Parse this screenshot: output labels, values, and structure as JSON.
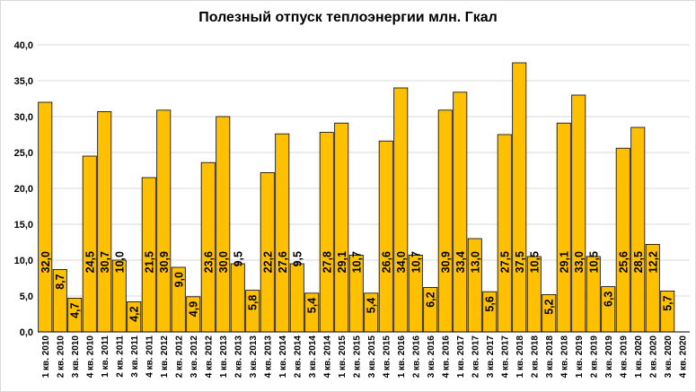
{
  "chart_data": {
    "type": "bar",
    "title": "Полезный отпуск теплоэнергии млн. Гкал",
    "xlabel": "",
    "ylabel": "",
    "ylim": [
      0,
      40
    ],
    "yticks": [
      "0,0",
      "5,0",
      "10,0",
      "15,0",
      "20,0",
      "25,0",
      "30,0",
      "35,0",
      "40,0"
    ],
    "grid": true,
    "legend": "none",
    "bar_color": "#FFC000",
    "bar_edge": "#000000",
    "categories": [
      "1 кв. 2010",
      "2 кв. 2010",
      "3 кв. 2010",
      "4 кв. 2010",
      "1 кв. 2011",
      "2 кв. 2011",
      "3 кв. 2011",
      "4 кв. 2011",
      "1 кв. 2012",
      "2 кв. 2012",
      "3 кв. 2012",
      "4 кв. 2012",
      "1 кв. 2013",
      "2 кв. 2013",
      "3 кв. 2013",
      "4 кв. 2013",
      "1 кв. 2014",
      "2 кв. 2014",
      "3 кв. 2014",
      "4 кв. 2014",
      "1 кв. 2015",
      "2 кв. 2015",
      "3 кв. 2015",
      "4 кв. 2015",
      "1 кв. 2016",
      "2 кв. 2016",
      "3 кв. 2016",
      "4 кв. 2016",
      "1 кв. 2017",
      "2 кв. 2017",
      "3 кв. 2017",
      "4 кв. 2017",
      "1 кв. 2018",
      "2 кв. 2018",
      "3 кв. 2018",
      "4 кв. 2018",
      "1 кв. 2019",
      "2 кв. 2019",
      "3 кв. 2019",
      "4 кв. 2019",
      "1 кв. 2020",
      "2 кв. 2020",
      "3 кв. 2020",
      "4 кв. 2020"
    ],
    "values": [
      32.0,
      8.7,
      4.7,
      24.5,
      30.7,
      10.0,
      4.2,
      21.5,
      30.9,
      9.0,
      4.9,
      23.6,
      30.0,
      9.5,
      5.8,
      22.2,
      27.6,
      9.5,
      5.4,
      27.8,
      29.1,
      10.7,
      5.4,
      26.6,
      34.0,
      10.7,
      6.2,
      30.9,
      33.4,
      13.0,
      5.6,
      27.5,
      37.5,
      10.5,
      5.2,
      29.1,
      33.0,
      10.5,
      6.3,
      25.6,
      28.5,
      12.2,
      5.7,
      null
    ],
    "labels": [
      "32,0",
      "8,7",
      "4,7",
      "24,5",
      "30,7",
      "10,0",
      "4,2",
      "21,5",
      "30,9",
      "9,0",
      "4,9",
      "23,6",
      "30,0",
      "9,5",
      "5,8",
      "22,2",
      "27,6",
      "9,5",
      "5,4",
      "27,8",
      "29,1",
      "10,7",
      "5,4",
      "26,6",
      "34,0",
      "10,7",
      "6,2",
      "30,9",
      "33,4",
      "13,0",
      "5,6",
      "27,5",
      "37,5",
      "10,5",
      "5,2",
      "29,1",
      "33,0",
      "10,5",
      "6,3",
      "25,6",
      "28,5",
      "12,2",
      "5,7",
      ""
    ]
  }
}
